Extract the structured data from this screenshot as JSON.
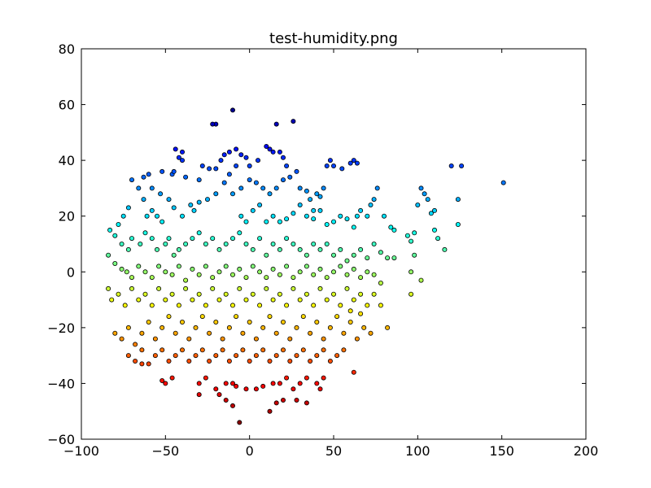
{
  "chart_data": {
    "type": "scatter",
    "title": "test-humidity.png",
    "xlabel": "",
    "ylabel": "",
    "xlim": [
      -100,
      200
    ],
    "ylim": [
      -60,
      80
    ],
    "xticks": [
      -100,
      -50,
      0,
      50,
      100,
      150,
      200
    ],
    "yticks": [
      -60,
      -40,
      -20,
      0,
      20,
      40,
      60,
      80
    ],
    "grid": false,
    "legend": "none",
    "colormap": "jet",
    "color_stops": [
      "#00007f",
      "#0000ff",
      "#007fff",
      "#00ffff",
      "#7fff7f",
      "#ffff00",
      "#ff7f00",
      "#ff0000",
      "#7f0000"
    ],
    "color_value_range": [
      -55,
      60
    ],
    "marker_edge_color": "#000000",
    "points": [
      [
        -10,
        58
      ],
      [
        -20,
        53
      ],
      [
        -22,
        53
      ],
      [
        16,
        53
      ],
      [
        26,
        54
      ],
      [
        -8,
        44
      ],
      [
        -12,
        43
      ],
      [
        -40,
        43
      ],
      [
        -42,
        41
      ],
      [
        -44,
        44
      ],
      [
        -52,
        36
      ],
      [
        -60,
        35
      ],
      [
        -63,
        34
      ],
      [
        -70,
        33
      ],
      [
        -66,
        30
      ],
      [
        -58,
        30
      ],
      [
        -46,
        35
      ],
      [
        -45,
        36
      ],
      [
        -40,
        40
      ],
      [
        -38,
        34
      ],
      [
        -30,
        33
      ],
      [
        -28,
        38
      ],
      [
        -24,
        37
      ],
      [
        -20,
        37
      ],
      [
        -17,
        40
      ],
      [
        -15,
        42
      ],
      [
        -5,
        42
      ],
      [
        -2,
        41
      ],
      [
        5,
        40
      ],
      [
        10,
        45
      ],
      [
        12,
        44
      ],
      [
        14,
        43
      ],
      [
        18,
        43
      ],
      [
        20,
        41
      ],
      [
        22,
        38
      ],
      [
        0,
        38
      ],
      [
        -8,
        38
      ],
      [
        -12,
        35
      ],
      [
        -15,
        32
      ],
      [
        -20,
        28
      ],
      [
        -25,
        26
      ],
      [
        -30,
        25
      ],
      [
        -35,
        24
      ],
      [
        -33,
        22
      ],
      [
        -40,
        20
      ],
      [
        -45,
        23
      ],
      [
        -48,
        26
      ],
      [
        -53,
        28
      ],
      [
        -58,
        22
      ],
      [
        -55,
        20
      ],
      [
        -52,
        18
      ],
      [
        -61,
        20
      ],
      [
        -63,
        26
      ],
      [
        -72,
        23
      ],
      [
        -75,
        20
      ],
      [
        -78,
        17
      ],
      [
        -10,
        28
      ],
      [
        -5,
        30
      ],
      [
        0,
        33
      ],
      [
        4,
        32
      ],
      [
        8,
        30
      ],
      [
        12,
        28
      ],
      [
        16,
        30
      ],
      [
        20,
        33
      ],
      [
        24,
        34
      ],
      [
        28,
        36
      ],
      [
        30,
        30
      ],
      [
        34,
        29
      ],
      [
        36,
        26
      ],
      [
        38,
        22
      ],
      [
        40,
        28
      ],
      [
        42,
        27
      ],
      [
        44,
        30
      ],
      [
        46,
        38
      ],
      [
        48,
        40
      ],
      [
        50,
        38
      ],
      [
        55,
        37
      ],
      [
        60,
        39
      ],
      [
        62,
        40
      ],
      [
        64,
        39
      ],
      [
        -5,
        20
      ],
      [
        -2,
        18
      ],
      [
        2,
        22
      ],
      [
        6,
        24
      ],
      [
        10,
        18
      ],
      [
        14,
        20
      ],
      [
        18,
        18
      ],
      [
        22,
        19
      ],
      [
        26,
        21
      ],
      [
        30,
        24
      ],
      [
        34,
        20
      ],
      [
        38,
        19
      ],
      [
        42,
        22
      ],
      [
        46,
        17
      ],
      [
        50,
        18
      ],
      [
        54,
        20
      ],
      [
        58,
        19
      ],
      [
        62,
        16
      ],
      [
        64,
        20
      ],
      [
        66,
        22
      ],
      [
        70,
        20
      ],
      [
        72,
        24
      ],
      [
        74,
        26
      ],
      [
        76,
        30
      ],
      [
        80,
        20
      ],
      [
        84,
        16
      ],
      [
        86,
        15
      ],
      [
        94,
        13
      ],
      [
        96,
        11
      ],
      [
        98,
        14
      ],
      [
        100,
        24
      ],
      [
        102,
        30
      ],
      [
        104,
        28
      ],
      [
        106,
        26
      ],
      [
        108,
        21
      ],
      [
        110,
        15
      ],
      [
        112,
        12
      ],
      [
        116,
        8
      ],
      [
        120,
        38
      ],
      [
        124,
        26
      ],
      [
        126,
        38
      ],
      [
        124,
        17
      ],
      [
        151,
        32
      ],
      [
        110,
        22
      ],
      [
        98,
        6
      ],
      [
        96,
        0
      ],
      [
        96,
        -8
      ],
      [
        102,
        -3
      ],
      [
        -83,
        15
      ],
      [
        -80,
        13
      ],
      [
        -76,
        10
      ],
      [
        -72,
        8
      ],
      [
        -70,
        12
      ],
      [
        -65,
        10
      ],
      [
        -62,
        14
      ],
      [
        -58,
        12
      ],
      [
        -55,
        8
      ],
      [
        -50,
        10
      ],
      [
        -48,
        12
      ],
      [
        -45,
        6
      ],
      [
        -42,
        8
      ],
      [
        -38,
        10
      ],
      [
        -34,
        12
      ],
      [
        -30,
        14
      ],
      [
        -26,
        10
      ],
      [
        -22,
        12
      ],
      [
        -18,
        8
      ],
      [
        -14,
        10
      ],
      [
        -10,
        12
      ],
      [
        -6,
        14
      ],
      [
        -2,
        10
      ],
      [
        2,
        8
      ],
      [
        6,
        12
      ],
      [
        10,
        6
      ],
      [
        14,
        10
      ],
      [
        18,
        8
      ],
      [
        22,
        12
      ],
      [
        26,
        10
      ],
      [
        30,
        8
      ],
      [
        34,
        6
      ],
      [
        38,
        10
      ],
      [
        42,
        8
      ],
      [
        46,
        10
      ],
      [
        50,
        6
      ],
      [
        54,
        8
      ],
      [
        58,
        4
      ],
      [
        62,
        6
      ],
      [
        66,
        8
      ],
      [
        70,
        5
      ],
      [
        74,
        10
      ],
      [
        78,
        7
      ],
      [
        82,
        5
      ],
      [
        86,
        5
      ],
      [
        -84,
        6
      ],
      [
        -80,
        3
      ],
      [
        -76,
        1
      ],
      [
        -73,
        0
      ],
      [
        -70,
        -2
      ],
      [
        -66,
        2
      ],
      [
        -62,
        0
      ],
      [
        -58,
        -2
      ],
      [
        -54,
        2
      ],
      [
        -50,
        0
      ],
      [
        -46,
        -1
      ],
      [
        -42,
        2
      ],
      [
        -38,
        -3
      ],
      [
        -34,
        1
      ],
      [
        -30,
        -1
      ],
      [
        -26,
        2
      ],
      [
        -22,
        -2
      ],
      [
        -18,
        0
      ],
      [
        -14,
        2
      ],
      [
        -10,
        -1
      ],
      [
        -6,
        1
      ],
      [
        -2,
        -2
      ],
      [
        2,
        2
      ],
      [
        6,
        0
      ],
      [
        10,
        -2
      ],
      [
        14,
        1
      ],
      [
        18,
        -1
      ],
      [
        22,
        2
      ],
      [
        26,
        -2
      ],
      [
        30,
        0
      ],
      [
        34,
        2
      ],
      [
        38,
        -1
      ],
      [
        42,
        1
      ],
      [
        46,
        -2
      ],
      [
        50,
        0
      ],
      [
        54,
        2
      ],
      [
        58,
        -1
      ],
      [
        62,
        1
      ],
      [
        66,
        -2
      ],
      [
        70,
        0
      ],
      [
        74,
        -1
      ],
      [
        78,
        -4
      ],
      [
        -84,
        -6
      ],
      [
        -82,
        -10
      ],
      [
        -78,
        -8
      ],
      [
        -74,
        -12
      ],
      [
        -70,
        -6
      ],
      [
        -66,
        -10
      ],
      [
        -62,
        -8
      ],
      [
        -58,
        -12
      ],
      [
        -54,
        -6
      ],
      [
        -50,
        -10
      ],
      [
        -46,
        -8
      ],
      [
        -42,
        -12
      ],
      [
        -38,
        -6
      ],
      [
        -34,
        -10
      ],
      [
        -30,
        -8
      ],
      [
        -26,
        -12
      ],
      [
        -22,
        -6
      ],
      [
        -18,
        -10
      ],
      [
        -14,
        -8
      ],
      [
        -10,
        -12
      ],
      [
        -6,
        -6
      ],
      [
        -2,
        -10
      ],
      [
        2,
        -8
      ],
      [
        6,
        -12
      ],
      [
        10,
        -6
      ],
      [
        14,
        -10
      ],
      [
        18,
        -8
      ],
      [
        22,
        -12
      ],
      [
        26,
        -6
      ],
      [
        30,
        -10
      ],
      [
        34,
        -8
      ],
      [
        38,
        -12
      ],
      [
        42,
        -6
      ],
      [
        46,
        -10
      ],
      [
        50,
        -8
      ],
      [
        54,
        -12
      ],
      [
        58,
        -6
      ],
      [
        62,
        -10
      ],
      [
        66,
        -8
      ],
      [
        70,
        -12
      ],
      [
        74,
        -8
      ],
      [
        78,
        -12
      ],
      [
        -80,
        -22
      ],
      [
        -76,
        -24
      ],
      [
        -72,
        -20
      ],
      [
        -68,
        -26
      ],
      [
        -64,
        -22
      ],
      [
        -60,
        -18
      ],
      [
        -56,
        -24
      ],
      [
        -52,
        -20
      ],
      [
        -48,
        -16
      ],
      [
        -44,
        -22
      ],
      [
        -40,
        -18
      ],
      [
        -36,
        -24
      ],
      [
        -32,
        -20
      ],
      [
        -28,
        -16
      ],
      [
        -24,
        -22
      ],
      [
        -20,
        -18
      ],
      [
        -16,
        -24
      ],
      [
        -12,
        -20
      ],
      [
        -8,
        -16
      ],
      [
        -4,
        -22
      ],
      [
        0,
        -18
      ],
      [
        4,
        -24
      ],
      [
        8,
        -20
      ],
      [
        12,
        -16
      ],
      [
        16,
        -22
      ],
      [
        20,
        -18
      ],
      [
        24,
        -24
      ],
      [
        28,
        -20
      ],
      [
        32,
        -16
      ],
      [
        36,
        -22
      ],
      [
        40,
        -18
      ],
      [
        44,
        -24
      ],
      [
        48,
        -20
      ],
      [
        52,
        -16
      ],
      [
        56,
        -22
      ],
      [
        60,
        -18
      ],
      [
        64,
        -24
      ],
      [
        68,
        -20
      ],
      [
        72,
        -22
      ],
      [
        82,
        -20
      ],
      [
        60,
        -14
      ],
      [
        66,
        -15
      ],
      [
        -72,
        -30
      ],
      [
        -68,
        -32
      ],
      [
        -64,
        -28
      ],
      [
        -60,
        -33
      ],
      [
        -56,
        -30
      ],
      [
        -52,
        -28
      ],
      [
        -48,
        -32
      ],
      [
        -44,
        -30
      ],
      [
        -40,
        -28
      ],
      [
        -36,
        -32
      ],
      [
        -32,
        -30
      ],
      [
        -28,
        -28
      ],
      [
        -24,
        -32
      ],
      [
        -20,
        -30
      ],
      [
        -16,
        -28
      ],
      [
        -12,
        -32
      ],
      [
        -8,
        -30
      ],
      [
        -4,
        -28
      ],
      [
        0,
        -32
      ],
      [
        4,
        -30
      ],
      [
        8,
        -28
      ],
      [
        12,
        -32
      ],
      [
        16,
        -30
      ],
      [
        20,
        -28
      ],
      [
        24,
        -32
      ],
      [
        28,
        -30
      ],
      [
        32,
        -28
      ],
      [
        36,
        -32
      ],
      [
        40,
        -30
      ],
      [
        44,
        -28
      ],
      [
        48,
        -32
      ],
      [
        52,
        -30
      ],
      [
        56,
        -28
      ],
      [
        -64,
        -33
      ],
      [
        -52,
        -39
      ],
      [
        -50,
        -40
      ],
      [
        -46,
        -38
      ],
      [
        -30,
        -40
      ],
      [
        -26,
        -38
      ],
      [
        -20,
        -42
      ],
      [
        -14,
        -40
      ],
      [
        -10,
        -40
      ],
      [
        -8,
        -41
      ],
      [
        -2,
        -42
      ],
      [
        4,
        -42
      ],
      [
        8,
        -41
      ],
      [
        14,
        -40
      ],
      [
        18,
        -40
      ],
      [
        22,
        -38
      ],
      [
        26,
        -42
      ],
      [
        30,
        -40
      ],
      [
        34,
        -38
      ],
      [
        40,
        -40
      ],
      [
        42,
        -42
      ],
      [
        44,
        -38
      ],
      [
        -30,
        -44
      ],
      [
        -18,
        -44
      ],
      [
        -14,
        -46
      ],
      [
        -10,
        -48
      ],
      [
        16,
        -47
      ],
      [
        20,
        -46
      ],
      [
        28,
        -46
      ],
      [
        34,
        -47
      ],
      [
        12,
        -50
      ],
      [
        -6,
        -54
      ],
      [
        62,
        -36
      ]
    ]
  }
}
